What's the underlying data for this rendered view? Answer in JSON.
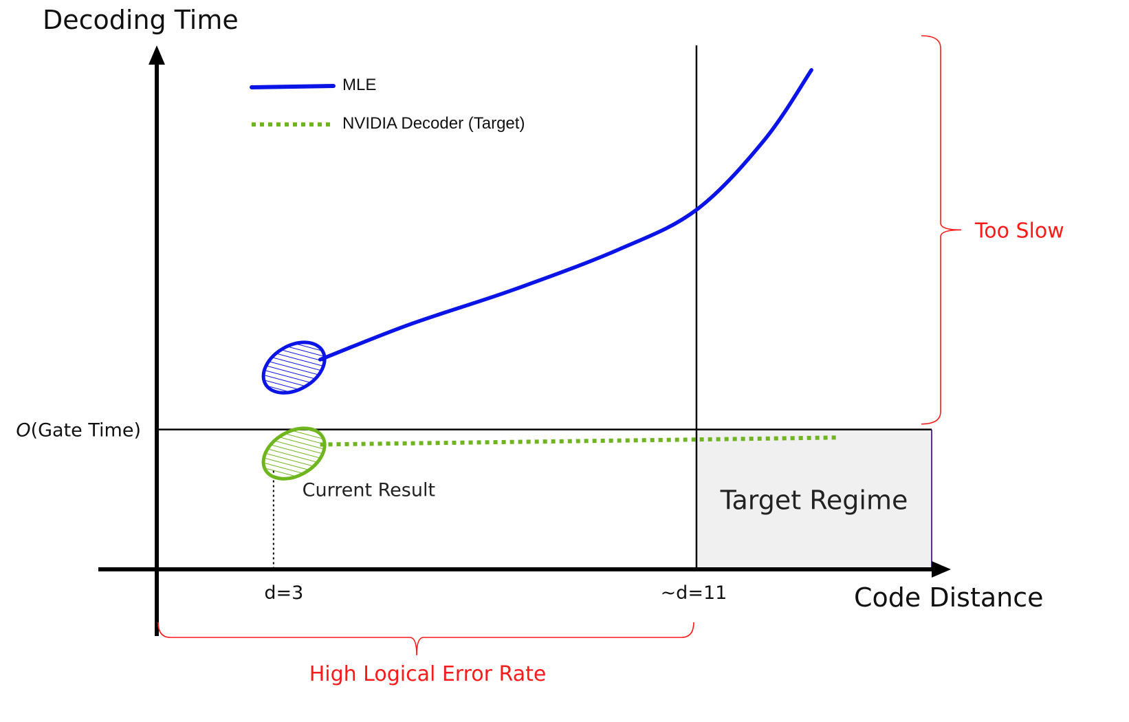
{
  "chart_data": {
    "type": "line",
    "ylabel": "Decoding Time",
    "xlabel": "Code Distance",
    "x_ticks": [
      {
        "label": "d=3",
        "value": 3
      },
      {
        "label": "~d=11",
        "value": 11
      }
    ],
    "reference_line": {
      "label_prefix": "O",
      "label_rest": "(Gate Time)",
      "value": 1
    },
    "series": [
      {
        "name": "MLE",
        "style": "solid",
        "color": "#0a14e6",
        "points": [
          [
            3.8,
            1.7
          ],
          [
            5.5,
            2.05
          ],
          [
            7.5,
            2.4
          ],
          [
            9.5,
            2.8
          ],
          [
            11,
            3.2
          ],
          [
            12.3,
            3.9
          ],
          [
            13.2,
            4.6
          ]
        ]
      },
      {
        "name": "NVIDIA Decoder (Target)",
        "style": "dotted",
        "color": "#6fb51e",
        "points": [
          [
            3.8,
            0.85
          ],
          [
            11,
            0.9
          ],
          [
            13.7,
            0.92
          ]
        ]
      }
    ],
    "highlights": [
      {
        "series": "MLE",
        "x": 3.3,
        "y": 1.62,
        "color": "#0a14e6"
      },
      {
        "series": "NVIDIA Decoder (Target)",
        "x": 3.3,
        "y": 0.76,
        "color": "#6fb51e",
        "label": "Current Result"
      }
    ],
    "annotations": {
      "too_slow": "Too Slow",
      "high_error": "High Logical Error Rate",
      "target_regime": "Target Regime"
    },
    "xlim": [
      0.7,
      15.5
    ],
    "ylim": [
      -0.4,
      4.75
    ],
    "colors": {
      "annotation": "#ff1a1a",
      "axis": "#000000",
      "regime_fill": "#f0f0f0",
      "regime_edge": "#5b2d8e"
    }
  }
}
